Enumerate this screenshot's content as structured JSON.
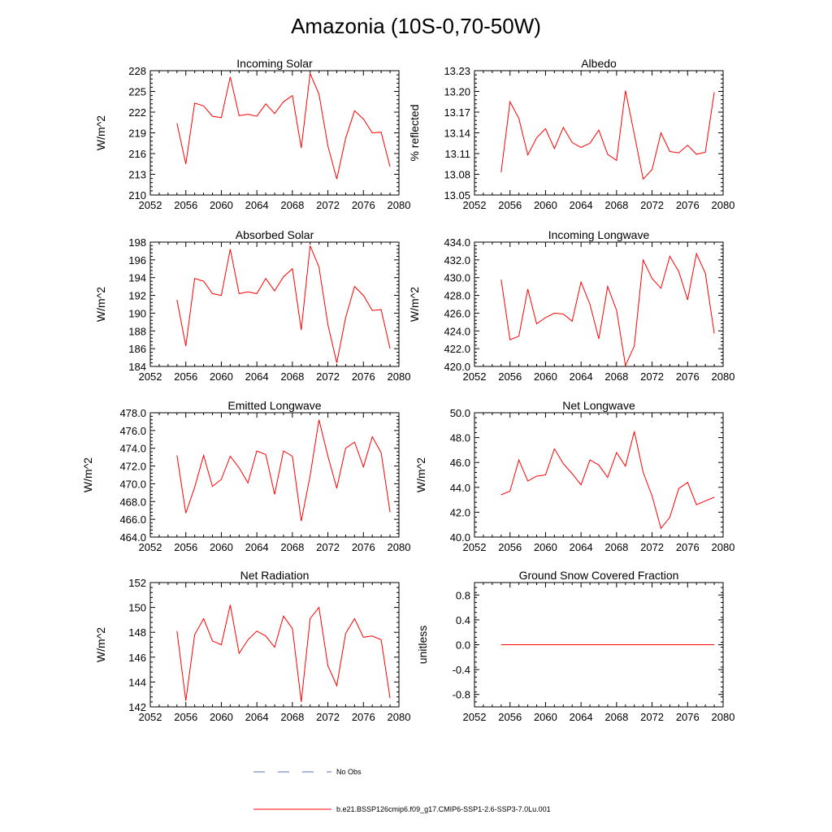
{
  "figure": {
    "title": "Amazonia (10S-0,70-50W)"
  },
  "legend": {
    "items": [
      {
        "label": "No Obs",
        "color": "#5a6fb5",
        "dash": true
      },
      {
        "label": "b.e21.BSSP126cmip6.f09_g17.CMIP6-SSP1-2.6-SSP3-7.0Lu.001",
        "color": "#ff0000",
        "dash": false
      }
    ]
  },
  "chart_data": [
    {
      "type": "line",
      "title": "Incoming Solar",
      "ylabel": "W/m^2",
      "xlim": [
        2052,
        2080
      ],
      "ylim": [
        210,
        228
      ],
      "xticks": [
        2052,
        2056,
        2060,
        2064,
        2068,
        2072,
        2076,
        2080
      ],
      "yticks": [
        210,
        213,
        216,
        219,
        222,
        225,
        228
      ],
      "ytick_labels": [
        "210",
        "213",
        "216",
        "219",
        "222",
        "225",
        "228"
      ],
      "x": [
        2055,
        2056,
        2057,
        2058,
        2059,
        2060,
        2061,
        2062,
        2063,
        2064,
        2065,
        2066,
        2067,
        2068,
        2069,
        2070,
        2071,
        2072,
        2073,
        2074,
        2075,
        2076,
        2077,
        2078,
        2079
      ],
      "series": [
        {
          "name": "b.e21.BSSP126cmip6.f09_g17.CMIP6-SSP1-2.6-SSP3-7.0Lu.001",
          "color": "#ff0000",
          "values": [
            220.4,
            214.5,
            223.3,
            222.9,
            221.4,
            221.2,
            227.1,
            221.5,
            221.7,
            221.4,
            223.2,
            221.8,
            223.5,
            224.4,
            216.8,
            227.6,
            224.6,
            217.1,
            212.3,
            218.2,
            222.2,
            221.0,
            219.0,
            219.1,
            214.1
          ]
        }
      ]
    },
    {
      "type": "line",
      "title": "Albedo",
      "ylabel": "% reflected",
      "xlim": [
        2052,
        2080
      ],
      "ylim": [
        13.05,
        13.23
      ],
      "xticks": [
        2052,
        2056,
        2060,
        2064,
        2068,
        2072,
        2076,
        2080
      ],
      "yticks": [
        13.05,
        13.08,
        13.11,
        13.14,
        13.17,
        13.2,
        13.23
      ],
      "ytick_labels": [
        "13.05",
        "13.08",
        "13.11",
        "13.14",
        "13.17",
        "13.20",
        "13.23"
      ],
      "x": [
        2055,
        2056,
        2057,
        2058,
        2059,
        2060,
        2061,
        2062,
        2063,
        2064,
        2065,
        2066,
        2067,
        2068,
        2069,
        2070,
        2071,
        2072,
        2073,
        2074,
        2075,
        2076,
        2077,
        2078,
        2079
      ],
      "series": [
        {
          "name": "b.e21.BSSP126cmip6.f09_g17.CMIP6-SSP1-2.6-SSP3-7.0Lu.001",
          "color": "#ff0000",
          "values": [
            13.083,
            13.185,
            13.161,
            13.108,
            13.133,
            13.146,
            13.117,
            13.148,
            13.126,
            13.119,
            13.125,
            13.144,
            13.109,
            13.1,
            13.201,
            13.138,
            13.073,
            13.087,
            13.14,
            13.113,
            13.111,
            13.122,
            13.109,
            13.112,
            13.199
          ]
        }
      ]
    },
    {
      "type": "line",
      "title": "Absorbed Solar",
      "ylabel": "W/m^2",
      "xlim": [
        2052,
        2080
      ],
      "ylim": [
        184,
        198
      ],
      "xticks": [
        2052,
        2056,
        2060,
        2064,
        2068,
        2072,
        2076,
        2080
      ],
      "yticks": [
        184,
        186,
        188,
        190,
        192,
        194,
        196,
        198
      ],
      "ytick_labels": [
        "184",
        "186",
        "188",
        "190",
        "192",
        "194",
        "196",
        "198"
      ],
      "x": [
        2055,
        2056,
        2057,
        2058,
        2059,
        2060,
        2061,
        2062,
        2063,
        2064,
        2065,
        2066,
        2067,
        2068,
        2069,
        2070,
        2071,
        2072,
        2073,
        2074,
        2075,
        2076,
        2077,
        2078,
        2079
      ],
      "series": [
        {
          "name": "b.e21.BSSP126cmip6.f09_g17.CMIP6-SSP1-2.6-SSP3-7.0Lu.001",
          "color": "#ff0000",
          "values": [
            191.5,
            186.3,
            193.9,
            193.6,
            192.2,
            192.0,
            197.2,
            192.2,
            192.4,
            192.2,
            193.9,
            192.5,
            194.1,
            195.0,
            188.1,
            197.6,
            195.2,
            188.7,
            184.4,
            189.5,
            193.0,
            192.0,
            190.3,
            190.4,
            186.0
          ]
        }
      ]
    },
    {
      "type": "line",
      "title": "Incoming Longwave",
      "ylabel": "W/m^2",
      "xlim": [
        2052,
        2080
      ],
      "ylim": [
        420.0,
        434.0
      ],
      "xticks": [
        2052,
        2056,
        2060,
        2064,
        2068,
        2072,
        2076,
        2080
      ],
      "yticks": [
        420,
        422,
        424,
        426,
        428,
        430,
        432,
        434
      ],
      "ytick_labels": [
        "420.0",
        "422.0",
        "424.0",
        "426.0",
        "428.0",
        "430.0",
        "432.0",
        "434.0"
      ],
      "x": [
        2055,
        2056,
        2057,
        2058,
        2059,
        2060,
        2061,
        2062,
        2063,
        2064,
        2065,
        2066,
        2067,
        2068,
        2069,
        2070,
        2071,
        2072,
        2073,
        2074,
        2075,
        2076,
        2077,
        2078,
        2079
      ],
      "series": [
        {
          "name": "b.e21.BSSP126cmip6.f09_g17.CMIP6-SSP1-2.6-SSP3-7.0Lu.001",
          "color": "#ff0000",
          "values": [
            429.8,
            423.0,
            423.4,
            428.7,
            424.8,
            425.5,
            426.0,
            425.9,
            425.1,
            429.5,
            427.0,
            423.1,
            429.0,
            426.3,
            420.1,
            422.3,
            432.0,
            429.9,
            428.8,
            432.4,
            430.7,
            427.5,
            432.7,
            430.5,
            423.7
          ]
        }
      ]
    },
    {
      "type": "line",
      "title": "Emitted Longwave",
      "ylabel": "W/m^2",
      "xlim": [
        2052,
        2080
      ],
      "ylim": [
        464.0,
        478.0
      ],
      "xticks": [
        2052,
        2056,
        2060,
        2064,
        2068,
        2072,
        2076,
        2080
      ],
      "yticks": [
        464,
        466,
        468,
        470,
        472,
        474,
        476,
        478
      ],
      "ytick_labels": [
        "464.0",
        "466.0",
        "468.0",
        "470.0",
        "472.0",
        "474.0",
        "476.0",
        "478.0"
      ],
      "x": [
        2055,
        2056,
        2057,
        2058,
        2059,
        2060,
        2061,
        2062,
        2063,
        2064,
        2065,
        2066,
        2067,
        2068,
        2069,
        2070,
        2071,
        2072,
        2073,
        2074,
        2075,
        2076,
        2077,
        2078,
        2079
      ],
      "series": [
        {
          "name": "b.e21.BSSP126cmip6.f09_g17.CMIP6-SSP1-2.6-SSP3-7.0Lu.001",
          "color": "#ff0000",
          "values": [
            473.2,
            466.7,
            469.6,
            473.2,
            469.7,
            470.5,
            473.1,
            471.8,
            470.1,
            473.7,
            473.3,
            468.8,
            473.7,
            473.1,
            465.8,
            470.9,
            477.2,
            473.1,
            469.5,
            474.0,
            474.7,
            471.9,
            475.3,
            473.5,
            466.8
          ]
        }
      ]
    },
    {
      "type": "line",
      "title": "Net Longwave",
      "ylabel": "W/m^2",
      "xlim": [
        2052,
        2080
      ],
      "ylim": [
        40.0,
        50.0
      ],
      "xticks": [
        2052,
        2056,
        2060,
        2064,
        2068,
        2072,
        2076,
        2080
      ],
      "yticks": [
        40,
        42,
        44,
        46,
        48,
        50
      ],
      "ytick_labels": [
        "40.0",
        "42.0",
        "44.0",
        "46.0",
        "48.0",
        "50.0"
      ],
      "x": [
        2055,
        2056,
        2057,
        2058,
        2059,
        2060,
        2061,
        2062,
        2063,
        2064,
        2065,
        2066,
        2067,
        2068,
        2069,
        2070,
        2071,
        2072,
        2073,
        2074,
        2075,
        2076,
        2077,
        2078,
        2079
      ],
      "series": [
        {
          "name": "b.e21.BSSP126cmip6.f09_g17.CMIP6-SSP1-2.6-SSP3-7.0Lu.001",
          "color": "#ff0000",
          "values": [
            43.4,
            43.7,
            46.2,
            44.5,
            44.9,
            45.0,
            47.1,
            45.9,
            45.1,
            44.2,
            46.2,
            45.8,
            44.8,
            46.8,
            45.7,
            48.5,
            45.2,
            43.3,
            40.7,
            41.6,
            43.9,
            44.4,
            42.6,
            42.9,
            43.2
          ]
        }
      ]
    },
    {
      "type": "line",
      "title": "Net Radiation",
      "ylabel": "W/m^2",
      "xlim": [
        2052,
        2080
      ],
      "ylim": [
        142,
        152
      ],
      "xticks": [
        2052,
        2056,
        2060,
        2064,
        2068,
        2072,
        2076,
        2080
      ],
      "yticks": [
        142,
        144,
        146,
        148,
        150,
        152
      ],
      "ytick_labels": [
        "142",
        "144",
        "146",
        "148",
        "150",
        "152"
      ],
      "x": [
        2055,
        2056,
        2057,
        2058,
        2059,
        2060,
        2061,
        2062,
        2063,
        2064,
        2065,
        2066,
        2067,
        2068,
        2069,
        2070,
        2071,
        2072,
        2073,
        2074,
        2075,
        2076,
        2077,
        2078,
        2079
      ],
      "series": [
        {
          "name": "b.e21.BSSP126cmip6.f09_g17.CMIP6-SSP1-2.6-SSP3-7.0Lu.001",
          "color": "#ff0000",
          "values": [
            148.1,
            142.5,
            147.8,
            149.1,
            147.3,
            147.0,
            150.2,
            146.3,
            147.4,
            148.1,
            147.7,
            146.8,
            149.3,
            148.3,
            142.4,
            149.1,
            150.0,
            145.3,
            143.7,
            147.9,
            149.1,
            147.6,
            147.7,
            147.4,
            142.7
          ]
        }
      ]
    },
    {
      "type": "line",
      "title": "Ground Snow Covered Fraction",
      "ylabel": "unitless",
      "xlim": [
        2052,
        2080
      ],
      "ylim": [
        -1.0,
        1.0
      ],
      "xticks": [
        2052,
        2056,
        2060,
        2064,
        2068,
        2072,
        2076,
        2080
      ],
      "yticks": [
        -0.8,
        -0.4,
        0.0,
        0.4,
        0.8
      ],
      "ytick_labels": [
        "-0.8",
        "-0.4",
        "0.0",
        "0.4",
        "0.8"
      ],
      "x": [
        2055,
        2056,
        2057,
        2058,
        2059,
        2060,
        2061,
        2062,
        2063,
        2064,
        2065,
        2066,
        2067,
        2068,
        2069,
        2070,
        2071,
        2072,
        2073,
        2074,
        2075,
        2076,
        2077,
        2078,
        2079
      ],
      "series": [
        {
          "name": "b.e21.BSSP126cmip6.f09_g17.CMIP6-SSP1-2.6-SSP3-7.0Lu.001",
          "color": "#ff0000",
          "values": [
            0,
            0,
            0,
            0,
            0,
            0,
            0,
            0,
            0,
            0,
            0,
            0,
            0,
            0,
            0,
            0,
            0,
            0,
            0,
            0,
            0,
            0,
            0,
            0,
            0
          ]
        }
      ]
    }
  ]
}
